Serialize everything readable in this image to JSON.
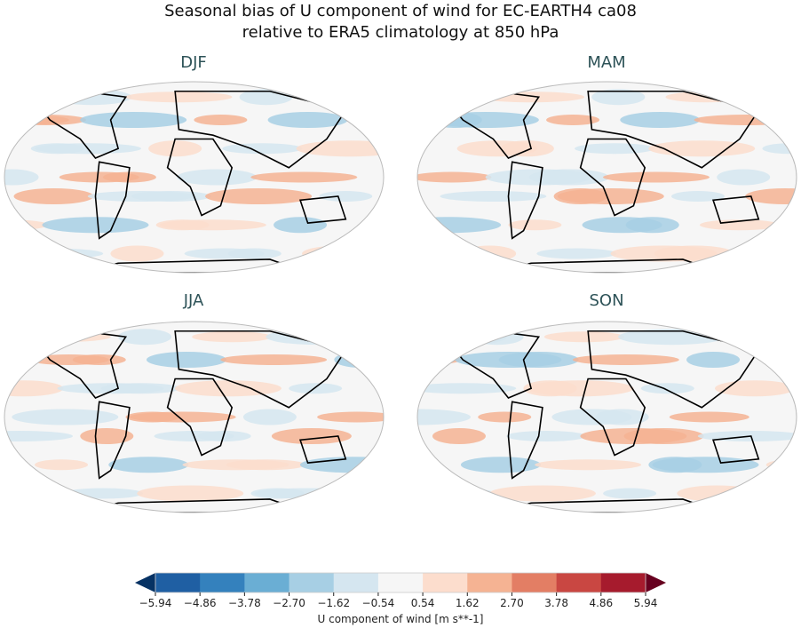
{
  "title_line1": "Seasonal bias of U component of wind for EC-EARTH4 ca08",
  "title_line2": "relative to ERA5 climatology at 850 hPa",
  "panels": [
    {
      "label": "DJF"
    },
    {
      "label": "MAM"
    },
    {
      "label": "JJA"
    },
    {
      "label": "SON"
    }
  ],
  "colorbar": {
    "label": "U component of wind [m s**-1]",
    "ticks": [
      "−5.94",
      "−4.86",
      "−3.78",
      "−2.70",
      "−1.62",
      "−0.54",
      "0.54",
      "1.62",
      "2.70",
      "3.78",
      "4.86",
      "5.94"
    ],
    "colors": [
      "#1f5fa3",
      "#3481bd",
      "#6aaed4",
      "#a7cfe4",
      "#d5e6f0",
      "#f6f6f6",
      "#fcddcd",
      "#f5b393",
      "#e37e64",
      "#c94742",
      "#a61b2d"
    ],
    "extend_low": "#063264",
    "extend_high": "#67001f"
  }
}
